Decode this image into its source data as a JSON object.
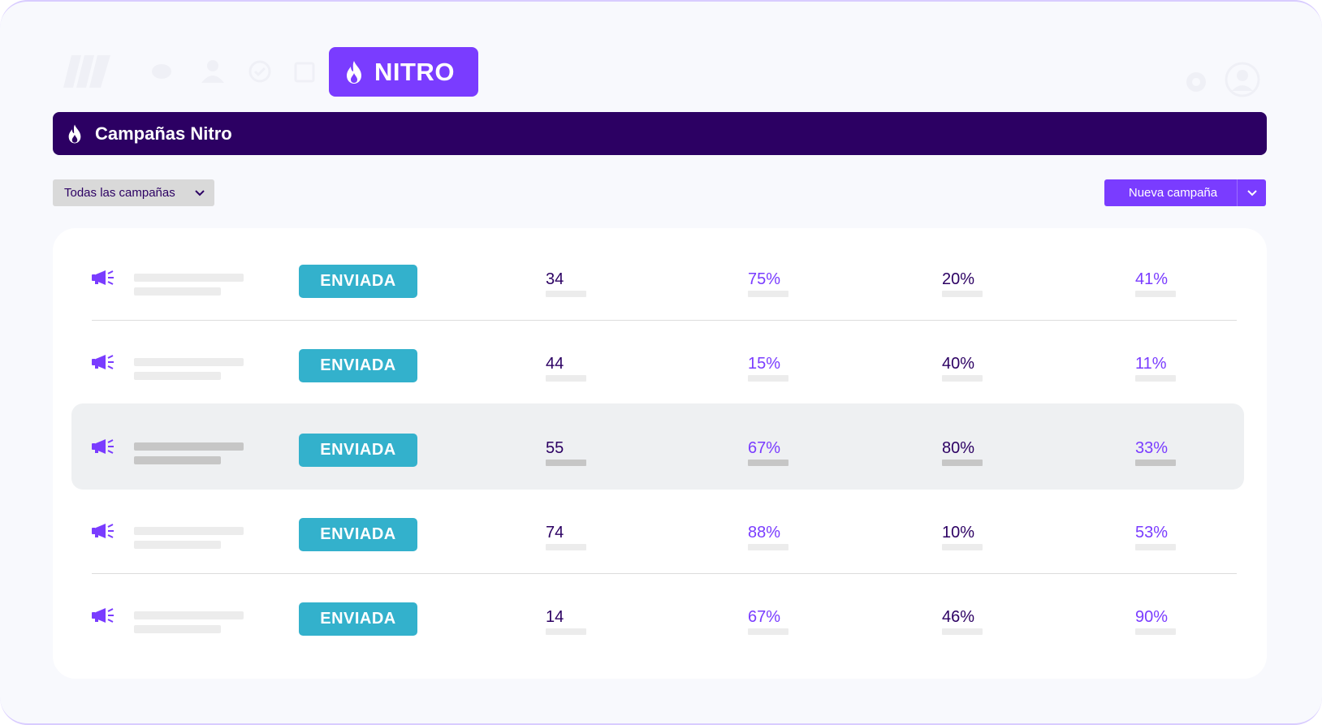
{
  "nav": {
    "icons": [
      "logo-icon",
      "chat-icon",
      "users-icon",
      "check-icon",
      "calendar-icon",
      "gear-icon",
      "user-avatar-icon"
    ],
    "active_tab": {
      "label": "NITRO",
      "icon": "flame-icon"
    }
  },
  "header": {
    "title": "Campañas Nitro",
    "icon": "flame-icon"
  },
  "filter": {
    "label": "Todas las campañas"
  },
  "new_campaign": {
    "label": "Nueva campaña"
  },
  "colors": {
    "accent": "#7a3cff",
    "header": "#2c0063",
    "status": "#33b1cc"
  },
  "rows": [
    {
      "status": "ENVIADA",
      "m1": "34",
      "m2": "75%",
      "m3": "20%",
      "m4": "41%"
    },
    {
      "status": "ENVIADA",
      "m1": "44",
      "m2": "15%",
      "m3": "40%",
      "m4": "11%"
    },
    {
      "status": "ENVIADA",
      "m1": "55",
      "m2": "67%",
      "m3": "80%",
      "m4": "33%",
      "highlighted": true
    },
    {
      "status": "ENVIADA",
      "m1": "74",
      "m2": "88%",
      "m3": "10%",
      "m4": "53%"
    },
    {
      "status": "ENVIADA",
      "m1": "14",
      "m2": "67%",
      "m3": "46%",
      "m4": "90%"
    }
  ]
}
